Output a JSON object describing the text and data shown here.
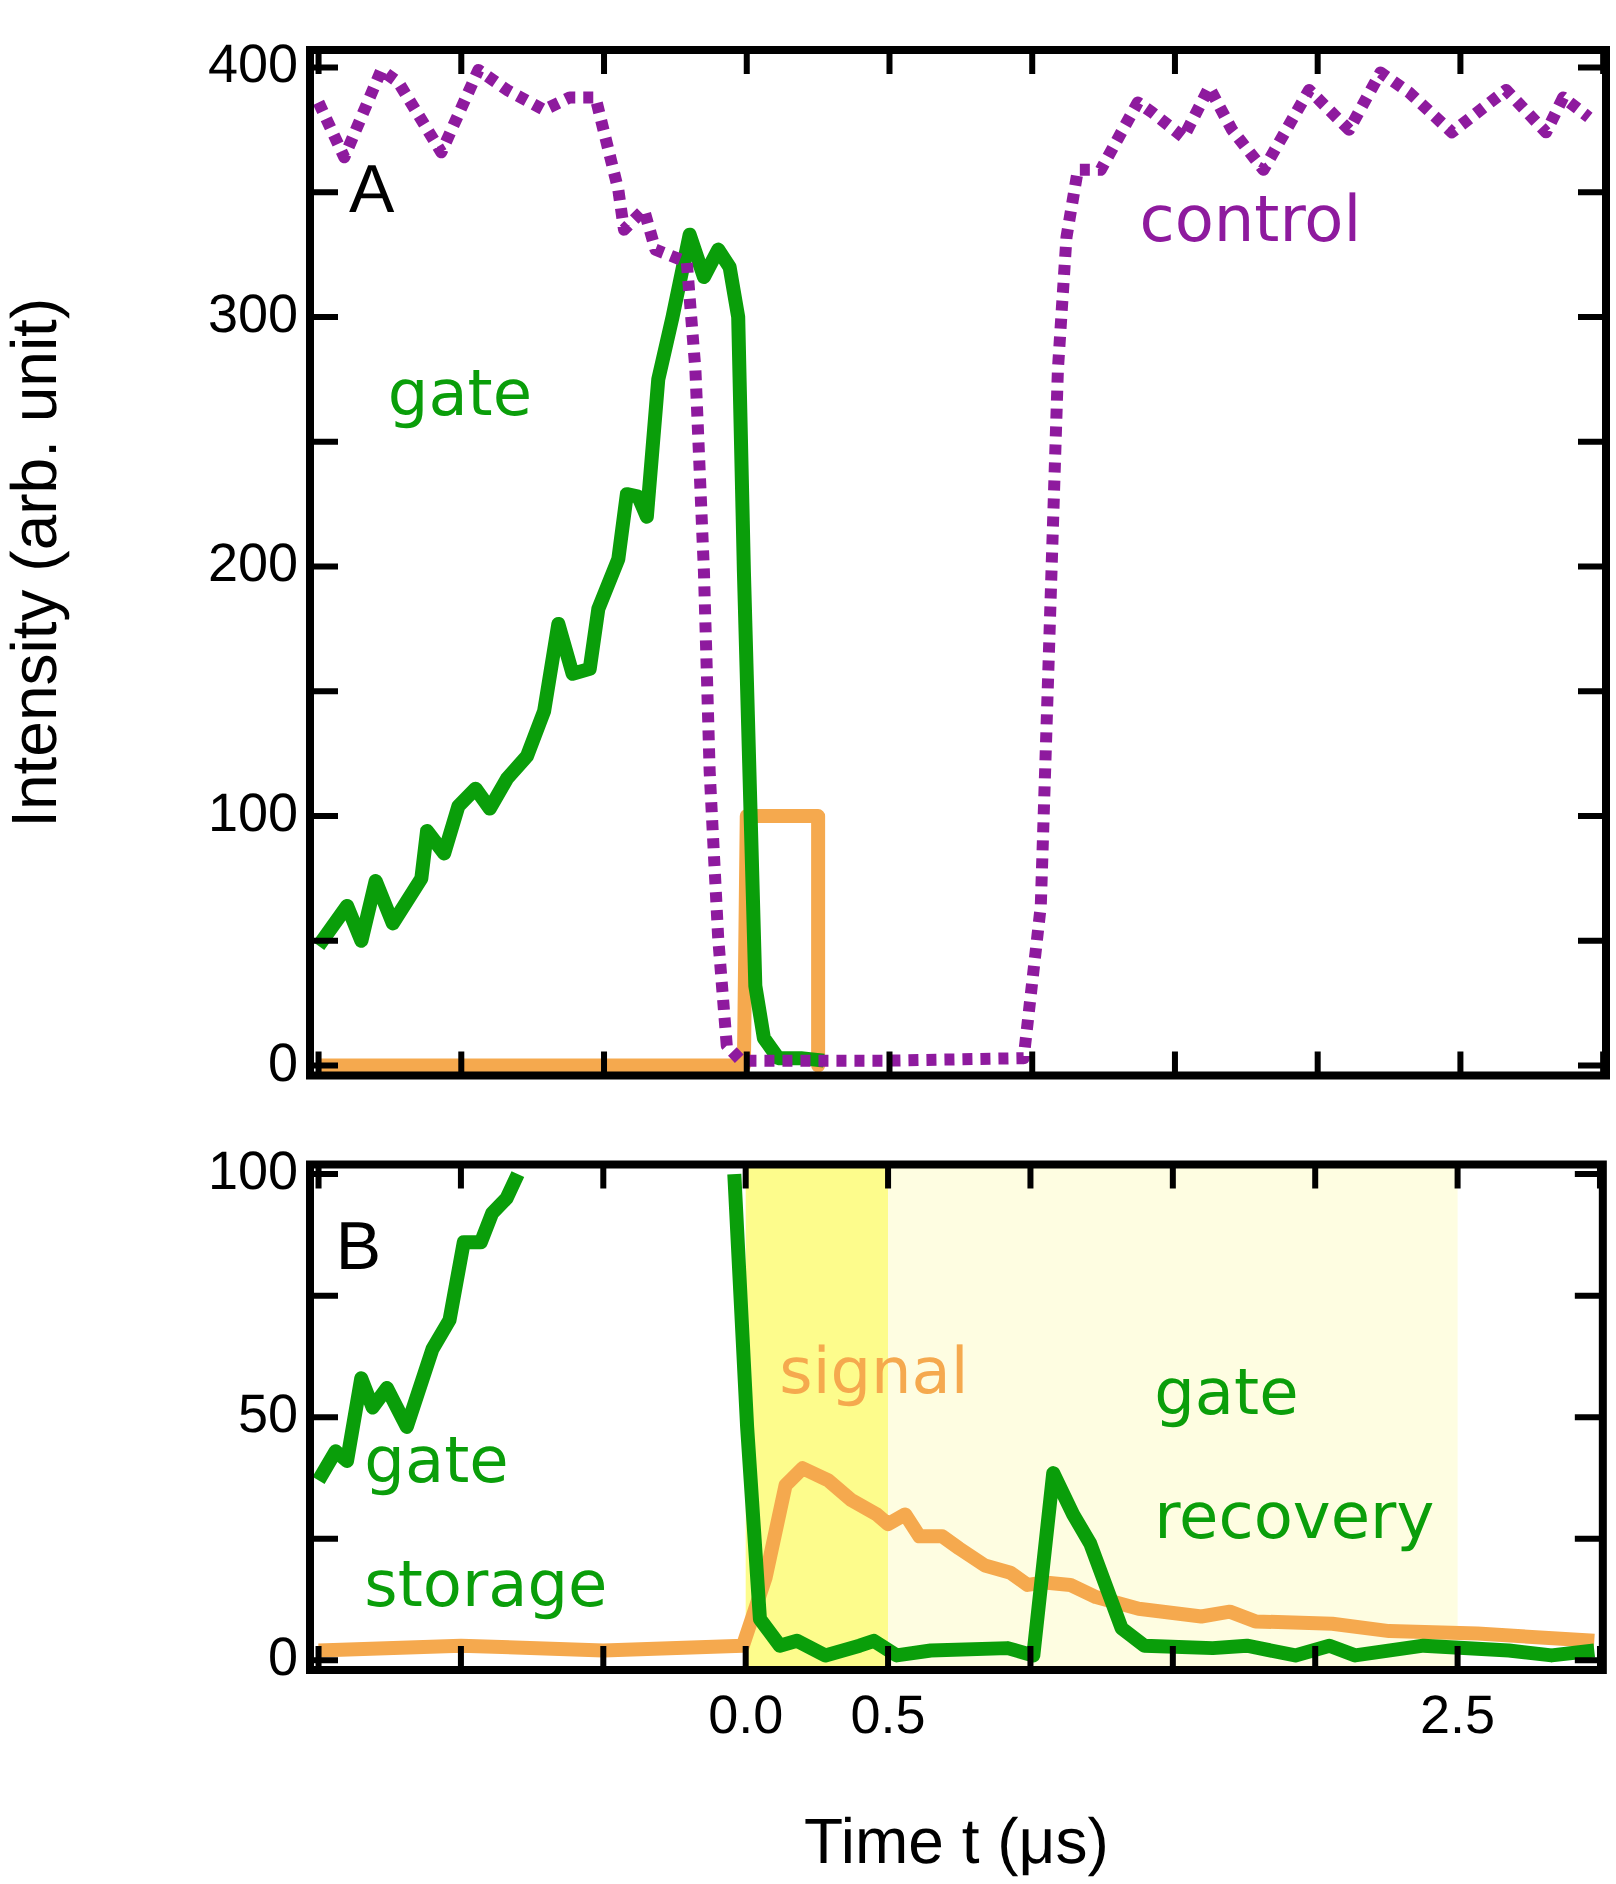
{
  "chart_data": [
    {
      "type": "line",
      "ylabel": "Intensity (arb. unit)",
      "annotations": [
        "A"
      ],
      "marker": "none",
      "legend": false,
      "grid": false,
      "tick_labels": "y",
      "xlim": [
        -1.53,
        3.01
      ],
      "xticks": [
        {
          "value": -1.5,
          "label": null
        },
        {
          "value": -1,
          "label": null
        },
        {
          "value": -0.5,
          "label": null
        },
        {
          "value": 0,
          "label": null
        },
        {
          "value": 0.5,
          "label": null
        },
        {
          "value": 1,
          "label": null
        },
        {
          "value": 1.5,
          "label": null
        },
        {
          "value": 2,
          "label": null
        },
        {
          "value": 2.5,
          "label": null
        },
        {
          "value": 3,
          "label": null
        }
      ],
      "ylim": [
        -4,
        407
      ],
      "yticks": [
        0,
        {
          "value": 50,
          "label": null
        },
        100,
        {
          "value": 150,
          "label": null
        },
        200,
        {
          "value": 250,
          "label": null
        },
        300,
        {
          "value": 350,
          "label": null
        },
        400
      ],
      "series": [
        {
          "name": "control",
          "color": "#8e1a9e",
          "line_style": "dotted",
          "x": [
            -1.5,
            -1.41,
            -1.28,
            -1.22,
            -1.07,
            -0.94,
            -0.84,
            -0.71,
            -0.62,
            -0.53,
            -0.45,
            -0.43,
            -0.36,
            -0.32,
            -0.21,
            -0.18,
            -0.15,
            -0.13,
            -0.1,
            -0.07,
            -0.02,
            0.5,
            0.97,
            1.03,
            1.06,
            1.09,
            1.12,
            1.16,
            1.24,
            1.37,
            1.42,
            1.53,
            1.62,
            1.7,
            1.81,
            1.97,
            2.11,
            2.22,
            2.32,
            2.47,
            2.66,
            2.8,
            2.86,
            2.95
          ],
          "values": [
            386,
            364,
            399,
            394,
            366,
            399,
            391,
            383,
            388,
            388,
            351,
            335,
            343,
            327,
            322,
            279,
            198,
            118,
            51,
            8,
            2,
            2,
            3,
            64,
            171,
            279,
            332,
            359,
            359,
            386,
            382,
            372,
            392,
            375,
            359,
            391,
            375,
            398,
            390,
            374,
            391,
            374,
            388,
            380
          ]
        },
        {
          "name": "gate",
          "color": "#0a9e0a",
          "line_style": "solid",
          "x": [
            -1.5,
            -1.4,
            -1.35,
            -1.3,
            -1.24,
            -1.14,
            -1.12,
            -1.06,
            -1.01,
            -0.95,
            -0.9,
            -0.84,
            -0.77,
            -0.71,
            -0.66,
            -0.61,
            -0.55,
            -0.52,
            -0.45,
            -0.42,
            -0.38,
            -0.35,
            -0.31,
            -0.26,
            -0.2,
            -0.15,
            -0.1,
            -0.06,
            -0.03,
            -0.01,
            0.03,
            0.06,
            0.11,
            0.19,
            0.27
          ],
          "values": [
            48,
            64,
            50,
            74,
            57,
            75,
            94,
            85,
            104,
            111,
            103,
            115,
            124,
            142,
            177,
            157,
            159,
            183,
            203,
            229,
            228,
            220,
            275,
            300,
            333,
            316,
            327,
            320,
            300,
            198,
            32,
            11,
            3,
            3,
            2
          ]
        },
        {
          "color": "#f5a94e",
          "line_style": "solid",
          "x": [
            -1.5,
            -0.01,
            0,
            0.25,
            0.25
          ],
          "values": [
            0,
            0,
            100,
            100,
            0
          ]
        }
      ]
    },
    {
      "type": "line",
      "xlabel": "Time t (μs)",
      "annotations": [
        "B"
      ],
      "marker": "none",
      "legend": false,
      "grid": false,
      "xlim": [
        -1.53,
        3.01
      ],
      "xticks": [
        {
          "value": -1.5,
          "label": null
        },
        {
          "value": -1,
          "label": null
        },
        {
          "value": -0.5,
          "label": null
        },
        {
          "value": 0,
          "label": "0.0"
        },
        0.5,
        {
          "value": 1,
          "label": null
        },
        {
          "value": 1.5,
          "label": null
        },
        {
          "value": 2,
          "label": null
        },
        2.5,
        {
          "value": 3,
          "label": null
        }
      ],
      "ylim": [
        -2,
        102
      ],
      "yticks": [
        0,
        {
          "value": 25,
          "label": null
        },
        50,
        {
          "value": 75,
          "label": null
        },
        100
      ],
      "bands": [
        {
          "axis": "x",
          "from": 0,
          "to": 0.5,
          "color": "#fdfc8c"
        },
        {
          "axis": "x",
          "from": 0.5,
          "to": 2.5,
          "color": "#fefde1"
        }
      ],
      "series": [
        {
          "name": "gate storage",
          "color": "#0a9e0a",
          "line_style": "solid",
          "x": [
            -1.5,
            -1.44,
            -1.4,
            -1.35,
            -1.31,
            -1.26,
            -1.19,
            -1.1,
            -1.04,
            -0.99,
            -0.93,
            -0.89,
            -0.84,
            -0.8
          ],
          "values": [
            37,
            43,
            41,
            58,
            52,
            56,
            48,
            64,
            70,
            86,
            86,
            92,
            95,
            100
          ]
        },
        {
          "name": "gate recovery",
          "color": "#0a9e0a",
          "line_style": "solid",
          "x": [
            -0.04,
            0.005,
            0.05,
            0.12,
            0.18,
            0.28,
            0.4,
            0.45,
            0.53,
            0.65,
            0.92,
            1.01,
            1.08,
            1.15,
            1.21,
            1.32,
            1.4,
            1.64,
            1.76,
            1.93,
            2.05,
            2.14,
            2.38,
            2.68,
            2.83,
            2.98
          ],
          "values": [
            100,
            48,
            8.5,
            3,
            4,
            1,
            3,
            4,
            1,
            2,
            2.5,
            1,
            38.5,
            30,
            24,
            6.6,
            3,
            2.5,
            3,
            1,
            3,
            1,
            3,
            2,
            1,
            2
          ]
        },
        {
          "name": "signal",
          "color": "#f5a94e",
          "line_style": "solid",
          "x": [
            -1.5,
            -1.0,
            -0.5,
            -0.01,
            0.07,
            0.14,
            0.2,
            0.29,
            0.37,
            0.46,
            0.5,
            0.56,
            0.61,
            0.69,
            0.75,
            0.84,
            0.93,
            0.99,
            1.05,
            1.14,
            1.23,
            1.38,
            1.6,
            1.7,
            1.79,
            2.06,
            2.26,
            2.57,
            2.98
          ],
          "values": [
            2,
            3,
            2,
            3,
            17,
            36,
            39.5,
            37,
            33,
            30,
            28,
            30,
            25.5,
            25.5,
            23,
            19.5,
            18,
            15.5,
            16,
            15.5,
            13,
            10.6,
            9,
            10,
            8,
            7.5,
            6,
            5.5,
            4
          ]
        }
      ]
    }
  ]
}
